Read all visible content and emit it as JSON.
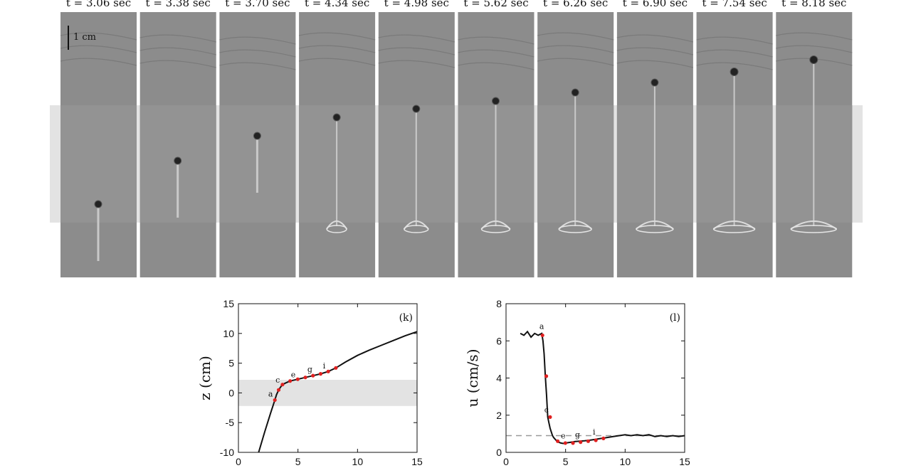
{
  "figure": {
    "frame_times": [
      "t = 3.06 sec",
      "t = 3.38 sec",
      "t = 3.70 sec",
      "t = 4.34 sec",
      "t = 4.98 sec",
      "t = 5.62 sec",
      "t = 6.26 sec",
      "t = 6.90 sec",
      "t = 7.54 sec",
      "t = 8.18 sec"
    ],
    "scale_bar": "1 cm",
    "colors": {
      "band": "#e3e3e3",
      "curve": "#111111",
      "points": "#e02020",
      "dash": "#999999"
    }
  },
  "chart_data": [
    {
      "type": "line",
      "panel_label": "(k)",
      "xlabel": "",
      "ylabel": "z (cm)",
      "xlim": [
        0,
        15
      ],
      "ylim": [
        -10,
        15
      ],
      "xticks": [
        "0",
        "5",
        "10",
        "15"
      ],
      "yticks": [
        "15",
        "10",
        "5",
        "0",
        "-5",
        "-10"
      ],
      "shaded_band": [
        -2.2,
        2.2
      ],
      "series": [
        {
          "x": [
            1.7,
            2.2,
            2.7,
            3.06,
            3.2,
            3.38,
            3.55,
            3.7,
            4.0,
            4.34,
            4.98,
            5.62,
            6.26,
            6.9,
            7.54,
            8.18,
            9.0,
            10.0,
            11.0,
            12.0,
            13.0,
            14.0,
            15.0
          ],
          "y": [
            -10.0,
            -6.6,
            -3.4,
            -1.2,
            -0.3,
            0.5,
            1.0,
            1.4,
            1.7,
            2.0,
            2.3,
            2.6,
            2.9,
            3.2,
            3.6,
            4.2,
            5.2,
            6.3,
            7.2,
            8.0,
            8.8,
            9.6,
            10.3
          ]
        }
      ],
      "points": {
        "x": [
          3.06,
          3.38,
          3.7,
          4.34,
          4.98,
          5.62,
          6.26,
          6.9,
          7.54,
          8.18
        ],
        "y": [
          -1.2,
          0.5,
          1.4,
          2.0,
          2.3,
          2.6,
          2.9,
          3.2,
          3.6,
          4.2
        ]
      },
      "point_labels": [
        {
          "text": "a",
          "x": 2.7,
          "y": -0.6
        },
        {
          "text": "c",
          "x": 3.3,
          "y": 1.7
        },
        {
          "text": "e",
          "x": 4.6,
          "y": 2.6
        },
        {
          "text": "g",
          "x": 6.0,
          "y": 3.5
        },
        {
          "text": "i",
          "x": 7.2,
          "y": 4.1
        }
      ]
    },
    {
      "type": "line",
      "panel_label": "(l)",
      "xlabel": "",
      "ylabel": "u (cm/s)",
      "xlim": [
        0,
        15
      ],
      "ylim": [
        0,
        8
      ],
      "xticks": [
        "0",
        "5",
        "10",
        "15"
      ],
      "yticks": [
        "8",
        "6",
        "4",
        "2",
        "0"
      ],
      "reference_line": 0.9,
      "series": [
        {
          "x": [
            1.2,
            1.5,
            1.8,
            2.1,
            2.4,
            2.7,
            3.0,
            3.1,
            3.2,
            3.3,
            3.4,
            3.5,
            3.6,
            3.7,
            3.8,
            3.9,
            4.0,
            4.2,
            4.4,
            4.6,
            4.8,
            5.0,
            5.2,
            5.5,
            5.8,
            6.2,
            6.6,
            7.0,
            7.5,
            8.0,
            8.5,
            9.0,
            9.5,
            10.0,
            10.5,
            11.0,
            11.5,
            12.0,
            12.5,
            13.0,
            13.5,
            14.0,
            14.5,
            15.0
          ],
          "y": [
            6.4,
            6.3,
            6.5,
            6.2,
            6.4,
            6.3,
            6.4,
            6.0,
            5.3,
            4.1,
            3.1,
            1.9,
            1.6,
            1.3,
            1.1,
            0.9,
            0.8,
            0.65,
            0.55,
            0.5,
            0.48,
            0.5,
            0.52,
            0.55,
            0.58,
            0.6,
            0.62,
            0.65,
            0.7,
            0.75,
            0.8,
            0.85,
            0.9,
            0.95,
            0.9,
            0.95,
            0.9,
            0.95,
            0.85,
            0.9,
            0.85,
            0.9,
            0.85,
            0.9
          ]
        }
      ],
      "points": {
        "x": [
          3.06,
          3.38,
          3.7,
          4.34,
          4.98,
          5.62,
          6.26,
          6.9,
          7.54,
          8.18
        ],
        "y": [
          6.3,
          4.1,
          1.9,
          0.6,
          0.5,
          0.5,
          0.55,
          0.6,
          0.65,
          0.75
        ]
      },
      "point_labels": [
        {
          "text": "a",
          "x": 3.0,
          "y": 6.65
        },
        {
          "text": "c",
          "x": 3.4,
          "y": 2.15
        },
        {
          "text": "e",
          "x": 4.8,
          "y": 0.75
        },
        {
          "text": "g",
          "x": 6.0,
          "y": 0.8
        },
        {
          "text": "i",
          "x": 7.4,
          "y": 0.95
        }
      ]
    }
  ]
}
